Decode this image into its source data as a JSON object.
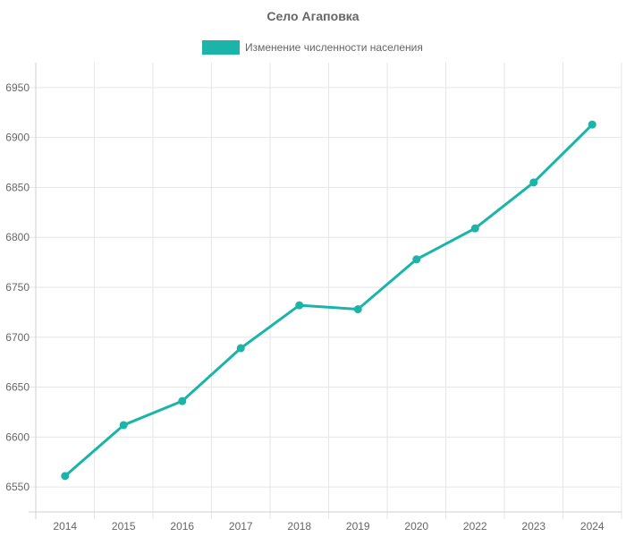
{
  "chart_data": {
    "type": "line",
    "title": "Село Агаповка",
    "categories": [
      "2014",
      "2015",
      "2016",
      "2017",
      "2018",
      "2019",
      "2020",
      "2022",
      "2023",
      "2024"
    ],
    "series": [
      {
        "name": "Изменение численности населения",
        "values": [
          6561,
          6612,
          6636,
          6689,
          6732,
          6728,
          6778,
          6809,
          6855,
          6913
        ],
        "color": "#1ab5a8"
      }
    ],
    "xlabel": "",
    "ylabel": "",
    "ylim": [
      6525,
      6975
    ],
    "yticks": [
      6550,
      6600,
      6650,
      6700,
      6750,
      6800,
      6850,
      6900,
      6950
    ],
    "grid": true,
    "legend": "top"
  }
}
